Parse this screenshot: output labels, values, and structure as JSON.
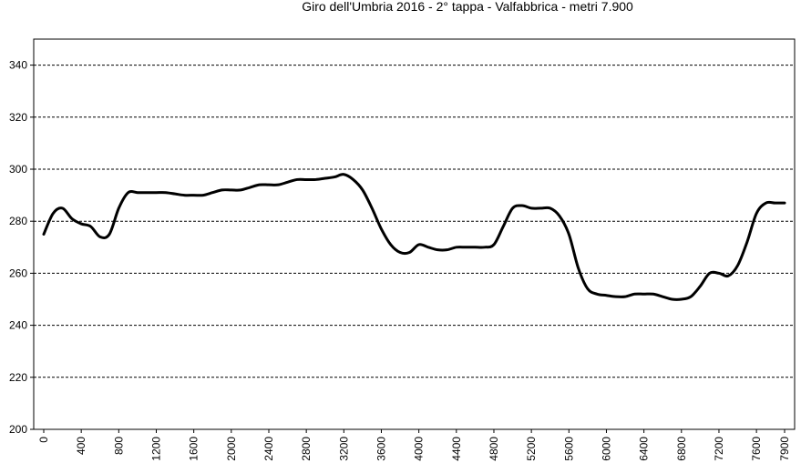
{
  "chart_data": {
    "type": "line",
    "title": "Giro dell'Umbria  2016  - 2° tappa  - Valfabbrica  - metri 7.900",
    "xlabel": "",
    "ylabel": "",
    "xlim": [
      0,
      7900
    ],
    "ylim": [
      200,
      350
    ],
    "x_ticks": [
      "0",
      "400",
      "800",
      "1200",
      "1600",
      "2000",
      "2400",
      "2800",
      "3200",
      "3600",
      "4000",
      "4400",
      "4800",
      "5200",
      "5600",
      "6000",
      "6400",
      "6800",
      "7200",
      "7600",
      "7900"
    ],
    "y_ticks": [
      "200",
      "220",
      "240",
      "260",
      "280",
      "300",
      "320",
      "340"
    ],
    "grid": "horizontal dashed",
    "legend": "none",
    "line_color": "#000000",
    "series": [
      {
        "x": [
          0,
          100,
          200,
          300,
          400,
          500,
          600,
          700,
          800,
          900,
          1000,
          1100,
          1200,
          1300,
          1400,
          1500,
          1600,
          1700,
          1800,
          1900,
          2000,
          2100,
          2200,
          2300,
          2400,
          2500,
          2600,
          2700,
          2800,
          2900,
          3000,
          3100,
          3200,
          3300,
          3400,
          3500,
          3600,
          3700,
          3800,
          3900,
          4000,
          4100,
          4200,
          4300,
          4400,
          4500,
          4600,
          4700,
          4800,
          4900,
          5000,
          5100,
          5200,
          5300,
          5400,
          5500,
          5600,
          5700,
          5800,
          5900,
          6000,
          6100,
          6200,
          6300,
          6400,
          6500,
          6600,
          6700,
          6800,
          6900,
          7000,
          7100,
          7200,
          7300,
          7400,
          7500,
          7600,
          7700,
          7800,
          7900
        ],
        "y": [
          275,
          283,
          285,
          281,
          279,
          278,
          274,
          275,
          285,
          291,
          291,
          291,
          291,
          291,
          290.5,
          290,
          290,
          290,
          291,
          292,
          292,
          292,
          293,
          294,
          294,
          294,
          295,
          296,
          296,
          296,
          296.5,
          297,
          298,
          296,
          292,
          285,
          277,
          271,
          268,
          268,
          271,
          270,
          269,
          269,
          270,
          270,
          270,
          270,
          271,
          278,
          285,
          286,
          285,
          285,
          285,
          282,
          275,
          262,
          254,
          252,
          251.5,
          251,
          251,
          252,
          252,
          252,
          251,
          250,
          250,
          251,
          255,
          260,
          260,
          259,
          263,
          272,
          283,
          287,
          287,
          287
        ]
      }
    ]
  }
}
